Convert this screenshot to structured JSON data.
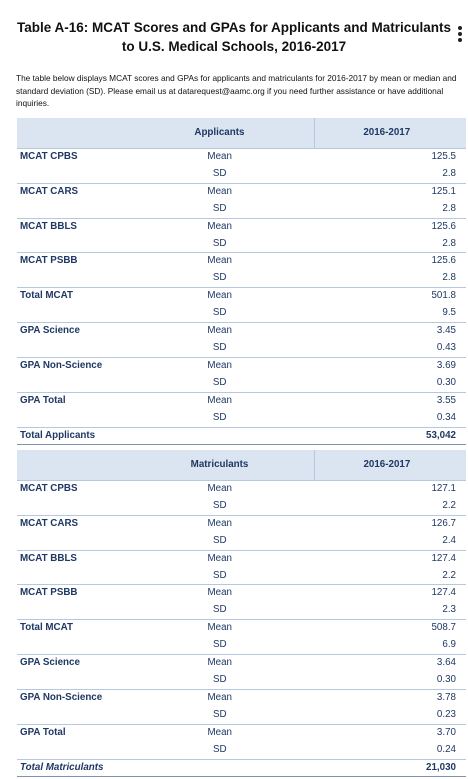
{
  "title": "Table A-16: MCAT Scores and GPAs for Applicants and Matriculants to U.S. Medical Schools, 2016-2017",
  "intro": "The table below displays MCAT scores and GPAs for applicants and matriculants for 2016-2017 by mean or median and standard deviation (SD). Please email us at datarequest@aamc.org if you need further assistance or have additional inquiries.",
  "applicants": {
    "header": "Applicants",
    "year": "2016-2017",
    "rows": [
      {
        "label": "MCAT CPBS",
        "mean": "125.5",
        "sd": "2.8"
      },
      {
        "label": "MCAT CARS",
        "mean": "125.1",
        "sd": "2.8"
      },
      {
        "label": "MCAT BBLS",
        "mean": "125.6",
        "sd": "2.8"
      },
      {
        "label": "MCAT PSBB",
        "mean": "125.6",
        "sd": "2.8"
      },
      {
        "label": "Total MCAT",
        "mean": "501.8",
        "sd": "9.5"
      },
      {
        "label": "GPA Science",
        "mean": "3.45",
        "sd": "0.43"
      },
      {
        "label": "GPA Non-Science",
        "mean": "3.69",
        "sd": "0.30"
      },
      {
        "label": "GPA Total",
        "mean": "3.55",
        "sd": "0.34"
      }
    ],
    "total_label": "Total Applicants",
    "total_value": "53,042"
  },
  "matriculants": {
    "header": "Matriculants",
    "year": "2016-2017",
    "rows": [
      {
        "label": "MCAT CPBS",
        "mean": "127.1",
        "sd": "2.2"
      },
      {
        "label": "MCAT CARS",
        "mean": "126.7",
        "sd": "2.4"
      },
      {
        "label": "MCAT BBLS",
        "mean": "127.4",
        "sd": "2.2"
      },
      {
        "label": "MCAT PSBB",
        "mean": "127.4",
        "sd": "2.3"
      },
      {
        "label": "Total MCAT",
        "mean": "508.7",
        "sd": "6.9"
      },
      {
        "label": "GPA Science",
        "mean": "3.64",
        "sd": "0.30"
      },
      {
        "label": "GPA Non-Science",
        "mean": "3.78",
        "sd": "0.23"
      },
      {
        "label": "GPA Total",
        "mean": "3.70",
        "sd": "0.24"
      }
    ],
    "total_label": "Total Matriculants",
    "total_value": "21,030"
  },
  "stat_labels": {
    "mean": "Mean",
    "sd": "SD"
  },
  "colors": {
    "header_fill": "#dbe5f1",
    "text": "#1f3864",
    "rule": "#b6c7e0"
  }
}
